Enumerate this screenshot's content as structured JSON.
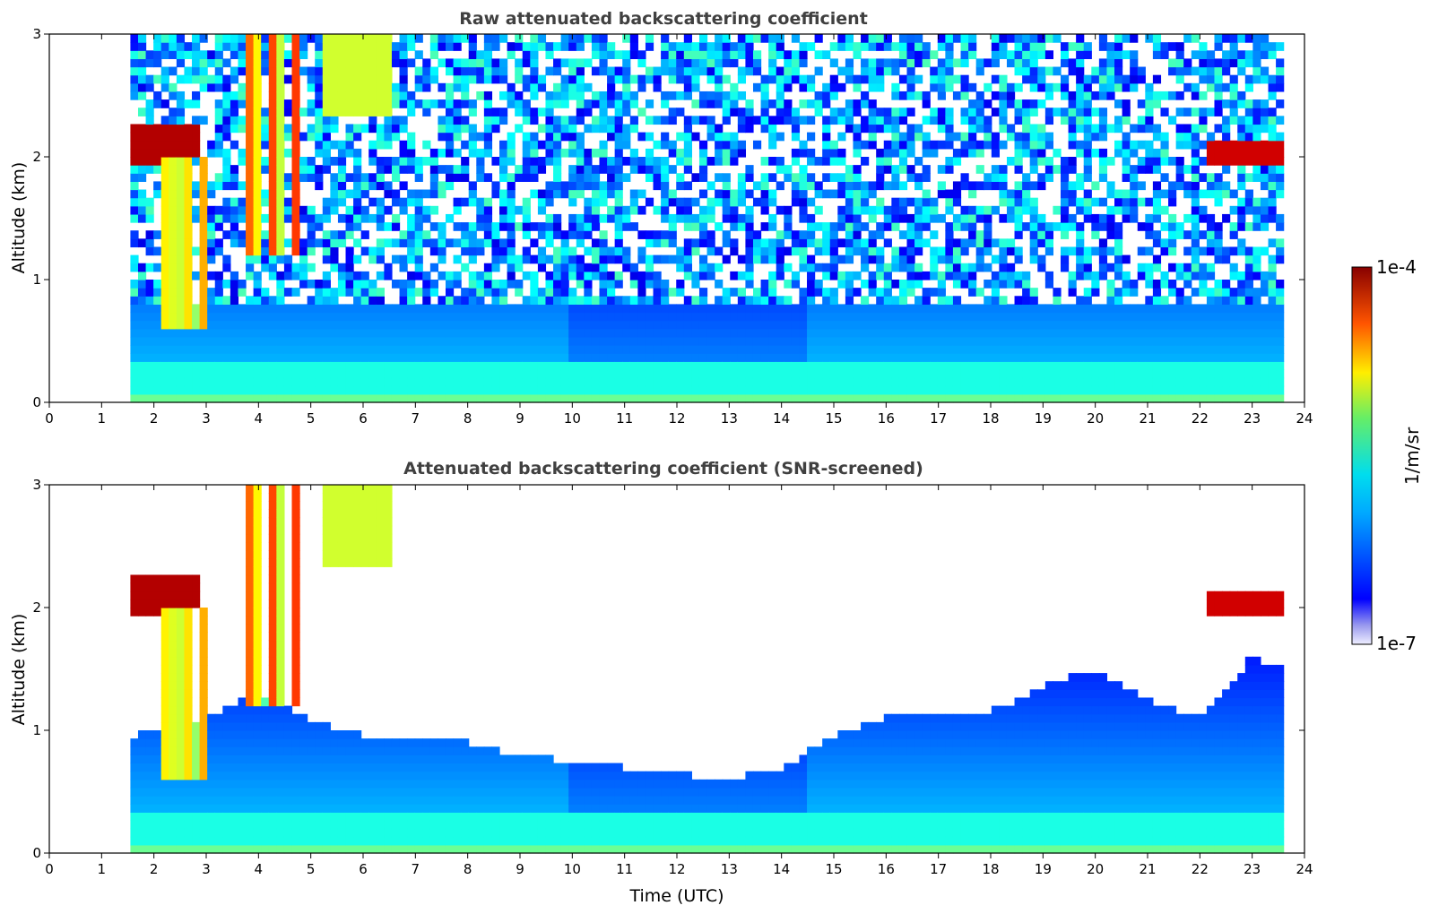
{
  "chart_data": [
    {
      "type": "heatmap",
      "title": "Raw attenuated backscattering coefficient",
      "xlabel": "",
      "ylabel": "Altitude (km)",
      "xlim": [
        0,
        24
      ],
      "ylim": [
        0,
        3
      ],
      "x_ticks": [
        "0",
        "1",
        "2",
        "3",
        "4",
        "5",
        "6",
        "7",
        "8",
        "9",
        "10",
        "11",
        "12",
        "13",
        "14",
        "15",
        "16",
        "17",
        "18",
        "19",
        "20",
        "21",
        "22",
        "23",
        "24"
      ],
      "y_ticks": [
        "0",
        "1",
        "2",
        "3"
      ],
      "data_time_range": [
        1.55,
        23.6
      ],
      "screened": false
    },
    {
      "type": "heatmap",
      "title": "Attenuated backscattering coefficient (SNR-screened)",
      "xlabel": "Time (UTC)",
      "ylabel": "Altitude (km)",
      "xlim": [
        0,
        24
      ],
      "ylim": [
        0,
        3
      ],
      "x_ticks": [
        "0",
        "1",
        "2",
        "3",
        "4",
        "5",
        "6",
        "7",
        "8",
        "9",
        "10",
        "11",
        "12",
        "13",
        "14",
        "15",
        "16",
        "17",
        "18",
        "19",
        "20",
        "21",
        "22",
        "23",
        "24"
      ],
      "y_ticks": [
        "0",
        "1",
        "2",
        "3"
      ],
      "data_time_range": [
        1.55,
        23.6
      ],
      "screened": true,
      "signal_top_km": [
        [
          1.55,
          0.95
        ],
        [
          2,
          1.0
        ],
        [
          3,
          1.1
        ],
        [
          4,
          1.3
        ],
        [
          5,
          1.1
        ],
        [
          6,
          0.95
        ],
        [
          7,
          0.9
        ],
        [
          8,
          0.9
        ],
        [
          9,
          0.8
        ],
        [
          10,
          0.75
        ],
        [
          11,
          0.7
        ],
        [
          12,
          0.65
        ],
        [
          13,
          0.6
        ],
        [
          14,
          0.7
        ],
        [
          15,
          0.95
        ],
        [
          16,
          1.1
        ],
        [
          17,
          1.1
        ],
        [
          18,
          1.15
        ],
        [
          19,
          1.35
        ],
        [
          20,
          1.5
        ],
        [
          21,
          1.25
        ],
        [
          22,
          1.1
        ],
        [
          23,
          1.6
        ],
        [
          23.6,
          1.5
        ]
      ]
    }
  ],
  "colorbar": {
    "label": "1/m/sr",
    "max_label": "1e-4",
    "min_label": "1e-7",
    "colormap": "jet"
  }
}
